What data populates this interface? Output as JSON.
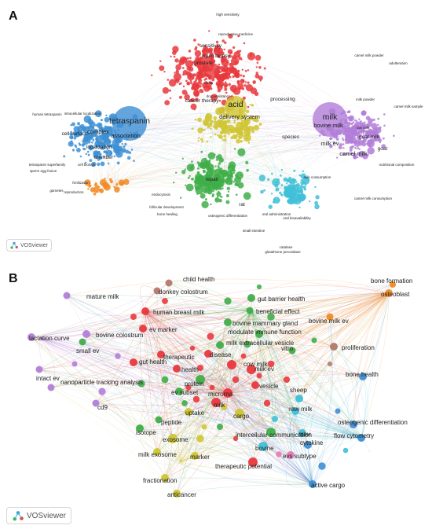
{
  "colors": {
    "red": "#e8383d",
    "green": "#3fae49",
    "blue": "#3d8fd4",
    "yellow": "#cfc533",
    "purple": "#b27ed8",
    "cyan": "#3fc0d8",
    "orange": "#f08a24",
    "brown": "#b07a6a",
    "pink": "#e57ab8",
    "lightgreen": "#8ccf63"
  },
  "panel_a": {
    "letter": "A",
    "badge": "VOSviewer",
    "labels": [
      {
        "text": "tetraspanin",
        "c": "blue",
        "big": 3
      },
      {
        "text": "complex",
        "c": "blue",
        "big": 2
      },
      {
        "text": "association",
        "c": "blue",
        "big": 2
      },
      {
        "text": "cell surface",
        "c": "blue",
        "big": 1
      },
      {
        "text": "member",
        "c": "blue",
        "big": 1
      },
      {
        "text": "localization",
        "c": "blue",
        "big": 1
      },
      {
        "text": "cell biology",
        "c": "blue",
        "big": 0
      },
      {
        "text": "human tetraspanin",
        "c": "blue",
        "big": 0
      },
      {
        "text": "tetraspanin superfamily",
        "c": "blue",
        "big": 0
      },
      {
        "text": "sperm egg fusion",
        "c": "blue",
        "big": 0
      },
      {
        "text": "fertilization",
        "c": "blue",
        "big": 0
      },
      {
        "text": "intracellular localization",
        "c": "blue",
        "big": 0
      },
      {
        "text": "acid",
        "c": "yellow",
        "big": 3
      },
      {
        "text": "delivery system",
        "c": "yellow",
        "big": 2
      },
      {
        "text": "cancer therapy",
        "c": "yellow",
        "big": 1
      },
      {
        "text": "processing",
        "c": "yellow",
        "big": 1
      },
      {
        "text": "liquid biopsy",
        "c": "red",
        "big": 1
      },
      {
        "text": "sensitivity",
        "c": "red",
        "big": 1
      },
      {
        "text": "prostate",
        "c": "red",
        "big": 1
      },
      {
        "text": "reproductive medicine",
        "c": "red",
        "big": 0
      },
      {
        "text": "high sensitivity",
        "c": "red",
        "big": 0
      },
      {
        "text": "drug resistance",
        "c": "red",
        "big": 0
      },
      {
        "text": "tumor",
        "c": "red",
        "big": 0
      },
      {
        "text": "milk",
        "c": "purple",
        "big": 3
      },
      {
        "text": "milk ev",
        "c": "purple",
        "big": 2
      },
      {
        "text": "bovine milk",
        "c": "purple",
        "big": 2
      },
      {
        "text": "camel milk",
        "c": "purple",
        "big": 2
      },
      {
        "text": "goat milk",
        "c": "purple",
        "big": 1
      },
      {
        "text": "goat",
        "c": "purple",
        "big": 1
      },
      {
        "text": "raw milk",
        "c": "purple",
        "big": 0
      },
      {
        "text": "species",
        "c": "purple",
        "big": 1
      },
      {
        "text": "milk powder",
        "c": "purple",
        "big": 0
      },
      {
        "text": "camel milk powder",
        "c": "purple",
        "big": 0
      },
      {
        "text": "adulteration",
        "c": "purple",
        "big": 0
      },
      {
        "text": "nutritional composition",
        "c": "purple",
        "big": 0
      },
      {
        "text": "camel milk consumption",
        "c": "purple",
        "big": 0
      },
      {
        "text": "camel milk sample",
        "c": "purple",
        "big": 0
      },
      {
        "text": "repair",
        "c": "green",
        "big": 1
      },
      {
        "text": "rat",
        "c": "green",
        "big": 1
      },
      {
        "text": "osteogenic differentiation",
        "c": "green",
        "big": 0
      },
      {
        "text": "follicular development",
        "c": "green",
        "big": 0
      },
      {
        "text": "bone healing",
        "c": "green",
        "big": 0
      },
      {
        "text": "endocytosis",
        "c": "green",
        "big": 0
      },
      {
        "text": "oral administration",
        "c": "cyan",
        "big": 0
      },
      {
        "text": "oral bioavailability",
        "c": "cyan",
        "big": 0
      },
      {
        "text": "small intestine",
        "c": "cyan",
        "big": 0
      },
      {
        "text": "glutathione peroxidase",
        "c": "cyan",
        "big": 0
      },
      {
        "text": "catalase",
        "c": "cyan",
        "big": 0
      },
      {
        "text": "milk consumption",
        "c": "cyan",
        "big": 0
      },
      {
        "text": "reproduction",
        "c": "orange",
        "big": 0
      },
      {
        "text": "gametes",
        "c": "orange",
        "big": 0
      }
    ]
  },
  "panel_b": {
    "letter": "B",
    "badge": "VOSviewer",
    "labels": [
      {
        "text": "child health",
        "c": "brown"
      },
      {
        "text": "donkey colostrum",
        "c": "brown"
      },
      {
        "text": "bone formation",
        "c": "orange"
      },
      {
        "text": "osteoblast",
        "c": "orange"
      },
      {
        "text": "human breast milk",
        "c": "red"
      },
      {
        "text": "gut barrier health",
        "c": "green"
      },
      {
        "text": "beneficial effect",
        "c": "green"
      },
      {
        "text": "mature milk",
        "c": "purple"
      },
      {
        "text": "ev marker",
        "c": "red"
      },
      {
        "text": "bovine mammary gland",
        "c": "green"
      },
      {
        "text": "bovine milk ev",
        "c": "orange"
      },
      {
        "text": "modulate immune function",
        "c": "green"
      },
      {
        "text": "lactation curve",
        "c": "purple"
      },
      {
        "text": "bovine colostrum",
        "c": "purple"
      },
      {
        "text": "milk extracellular vesicle",
        "c": "green"
      },
      {
        "text": "vitro",
        "c": "green"
      },
      {
        "text": "therapeutic",
        "c": "red"
      },
      {
        "text": "disease",
        "c": "red"
      },
      {
        "text": "proliferation",
        "c": "brown"
      },
      {
        "text": "gut health",
        "c": "red"
      },
      {
        "text": "cow milk",
        "c": "red"
      },
      {
        "text": "small ev",
        "c": "green"
      },
      {
        "text": "health",
        "c": "red"
      },
      {
        "text": "milk ev",
        "c": "red"
      },
      {
        "text": "intact ev",
        "c": "purple"
      },
      {
        "text": "protein",
        "c": "green"
      },
      {
        "text": "bone health",
        "c": "blue"
      },
      {
        "text": "vesicle",
        "c": "red"
      },
      {
        "text": "nanoparticle tracking analysis",
        "c": "purple"
      },
      {
        "text": "ev subset",
        "c": "green"
      },
      {
        "text": "microrna",
        "c": "red"
      },
      {
        "text": "cd9",
        "c": "purple"
      },
      {
        "text": "milk",
        "c": "red"
      },
      {
        "text": "sheep",
        "c": "cyan"
      },
      {
        "text": "raw milk",
        "c": "cyan"
      },
      {
        "text": "uptake",
        "c": "yellow"
      },
      {
        "text": "cargo",
        "c": "yellow"
      },
      {
        "text": "peptide",
        "c": "green"
      },
      {
        "text": "osteogenic differentiation",
        "c": "blue"
      },
      {
        "text": "isotope",
        "c": "green"
      },
      {
        "text": "intercellular communication",
        "c": "green"
      },
      {
        "text": "mev",
        "c": "cyan"
      },
      {
        "text": "flow cytometry",
        "c": "blue"
      },
      {
        "text": "exosome",
        "c": "yellow"
      },
      {
        "text": "bovine",
        "c": "cyan"
      },
      {
        "text": "cytokine",
        "c": "blue"
      },
      {
        "text": "milk exosome",
        "c": "yellow"
      },
      {
        "text": "marker",
        "c": "yellow"
      },
      {
        "text": "evs subtype",
        "c": "pink"
      },
      {
        "text": "therapeutic potential",
        "c": "red"
      },
      {
        "text": "fractionation",
        "c": "yellow"
      },
      {
        "text": "active cargo",
        "c": "blue"
      },
      {
        "text": "anticancer",
        "c": "yellow"
      }
    ]
  }
}
